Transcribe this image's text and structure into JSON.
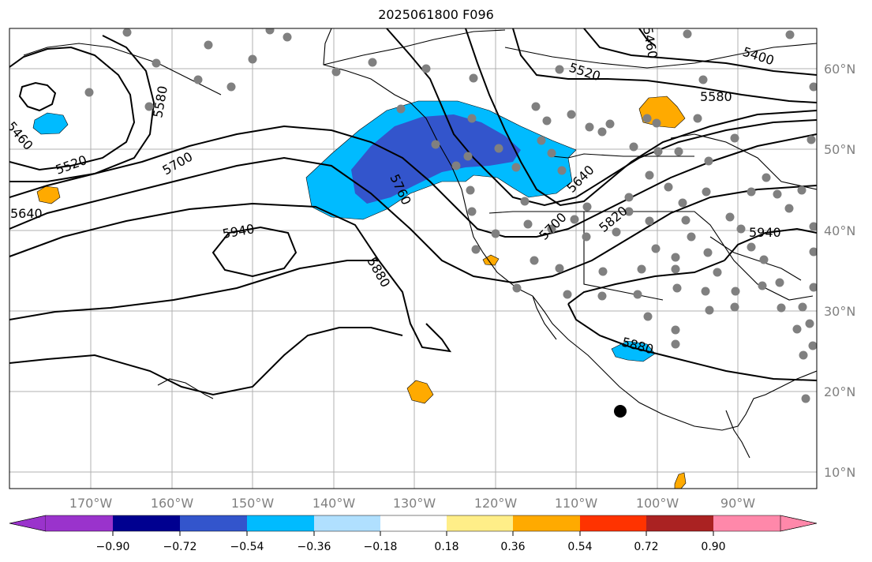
{
  "title": "2025061800 F096",
  "lon_labels": [
    "170°W",
    "160°W",
    "150°W",
    "140°W",
    "130°W",
    "120°W",
    "110°W",
    "100°W",
    "90°W"
  ],
  "lat_labels": [
    "10°N",
    "20°N",
    "30°N",
    "40°N",
    "50°N",
    "60°N"
  ],
  "contour_labels": [
    "5460",
    "5520",
    "5580",
    "5640",
    "5700",
    "5940",
    "5400",
    "5520",
    "5580",
    "5460",
    "5760",
    "5880",
    "5640",
    "5700",
    "5820",
    "5940",
    "5880"
  ],
  "colorbar": {
    "colors": [
      "#9a33cc",
      "#000090",
      "#3355cc",
      "#00bbff",
      "#b0e0ff",
      "#ffffff",
      "#ffee88",
      "#ffaa00",
      "#ff3300",
      "#aa2222",
      "#ff88aa"
    ],
    "ticks": [
      "−0.90",
      "−0.72",
      "−0.54",
      "−0.36",
      "−0.18",
      "0.18",
      "0.36",
      "0.54",
      "0.72",
      "0.90"
    ]
  }
}
